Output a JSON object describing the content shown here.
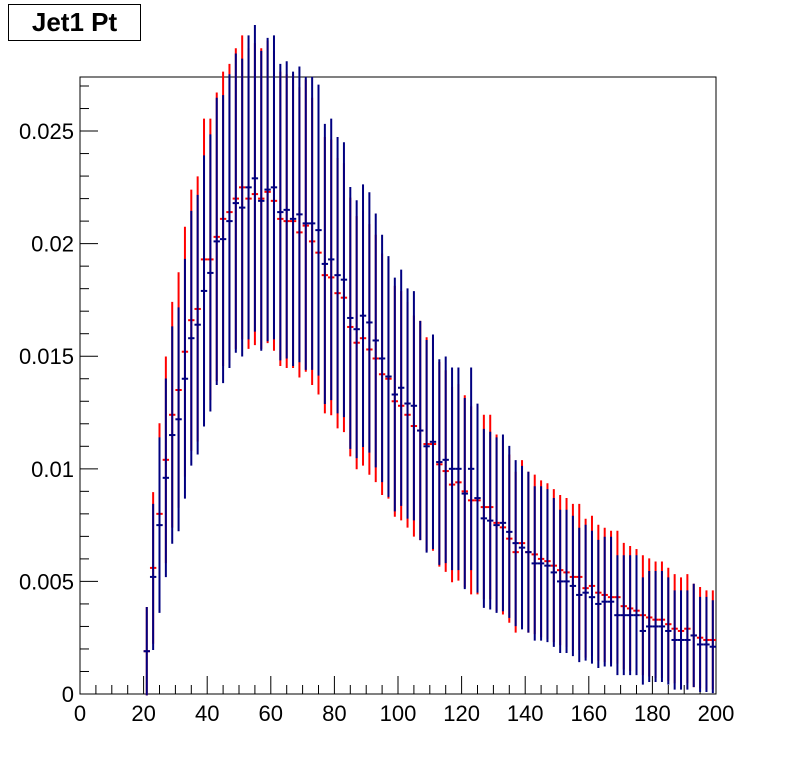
{
  "chart_data": {
    "type": "scatter",
    "title": "Jet1 Pt",
    "xlabel": "",
    "ylabel": "",
    "xlim": [
      0,
      200
    ],
    "ylim": [
      0,
      0.0274
    ],
    "x_ticks": [
      0,
      20,
      40,
      60,
      80,
      100,
      120,
      140,
      160,
      180,
      200
    ],
    "x_tick_labels": [
      "0",
      "20",
      "40",
      "60",
      "80",
      "100",
      "120",
      "140",
      "160",
      "180",
      "200"
    ],
    "y_ticks": [
      0,
      0.005,
      0.01,
      0.015,
      0.02,
      0.025
    ],
    "y_tick_labels": [
      "0",
      "0.005",
      "0.01",
      "0.015",
      "0.02",
      "0.025"
    ],
    "bin_width": 2,
    "grid": false,
    "legend": "none",
    "series": [
      {
        "color": "#ff0000",
        "x": [
          21,
          23,
          25,
          27,
          29,
          31,
          33,
          35,
          37,
          39,
          41,
          43,
          45,
          47,
          49,
          51,
          53,
          55,
          57,
          59,
          61,
          63,
          65,
          67,
          69,
          71,
          73,
          75,
          77,
          79,
          81,
          83,
          85,
          87,
          89,
          91,
          93,
          95,
          97,
          99,
          101,
          103,
          105,
          107,
          109,
          111,
          113,
          115,
          117,
          119,
          121,
          123,
          125,
          127,
          129,
          131,
          133,
          135,
          137,
          139,
          141,
          143,
          145,
          147,
          149,
          151,
          153,
          155,
          157,
          159,
          161,
          163,
          165,
          167,
          169,
          171,
          173,
          175,
          177,
          179,
          181,
          183,
          185,
          187,
          189,
          191,
          193,
          195,
          197,
          199
        ],
        "y": [
          0.0019,
          0.0056,
          0.008,
          0.0104,
          0.0124,
          0.0135,
          0.0152,
          0.0166,
          0.0171,
          0.0193,
          0.0193,
          0.0203,
          0.0211,
          0.0214,
          0.022,
          0.0225,
          0.022,
          0.0222,
          0.022,
          0.0223,
          0.0219,
          0.0211,
          0.021,
          0.021,
          0.0205,
          0.0208,
          0.0201,
          0.0196,
          0.0186,
          0.0185,
          0.0178,
          0.0176,
          0.0163,
          0.0156,
          0.0158,
          0.0153,
          0.0149,
          0.0142,
          0.014,
          0.013,
          0.0128,
          0.0124,
          0.0119,
          0.0117,
          0.0111,
          0.0111,
          0.0102,
          0.0099,
          0.0093,
          0.0094,
          0.009,
          0.0086,
          0.0086,
          0.0083,
          0.0083,
          0.0076,
          0.0074,
          0.0069,
          0.0063,
          0.0067,
          0.0063,
          0.0062,
          0.006,
          0.0059,
          0.0057,
          0.0055,
          0.0054,
          0.0052,
          0.0052,
          0.0047,
          0.0048,
          0.0045,
          0.0044,
          0.0043,
          0.0043,
          0.0039,
          0.0038,
          0.0037,
          0.0035,
          0.0034,
          0.0033,
          0.0033,
          0.0031,
          0.0029,
          0.0028,
          0.0029,
          0.0026,
          0.0025,
          0.0024,
          0.0024
        ]
      },
      {
        "color": "#000080",
        "x": [
          21,
          23,
          25,
          27,
          29,
          31,
          33,
          35,
          37,
          39,
          41,
          43,
          45,
          47,
          49,
          51,
          53,
          55,
          57,
          59,
          61,
          63,
          65,
          67,
          69,
          71,
          73,
          75,
          77,
          79,
          81,
          83,
          85,
          87,
          89,
          91,
          93,
          95,
          97,
          99,
          101,
          103,
          105,
          107,
          109,
          111,
          113,
          115,
          117,
          119,
          121,
          123,
          125,
          127,
          129,
          131,
          133,
          135,
          137,
          139,
          141,
          143,
          145,
          147,
          149,
          151,
          153,
          155,
          157,
          159,
          161,
          163,
          165,
          167,
          169,
          171,
          173,
          175,
          177,
          179,
          181,
          183,
          185,
          187,
          189,
          191,
          193,
          195,
          197,
          199
        ],
        "y": [
          0.0019,
          0.0052,
          0.0075,
          0.0096,
          0.0115,
          0.0122,
          0.014,
          0.0158,
          0.0164,
          0.0179,
          0.0187,
          0.0201,
          0.0202,
          0.021,
          0.0218,
          0.0216,
          0.0225,
          0.0229,
          0.0219,
          0.0224,
          0.0225,
          0.0214,
          0.0215,
          0.0211,
          0.0213,
          0.0209,
          0.0209,
          0.0206,
          0.0191,
          0.0193,
          0.0186,
          0.0184,
          0.0167,
          0.0162,
          0.0168,
          0.0165,
          0.0157,
          0.0149,
          0.0141,
          0.0133,
          0.0136,
          0.0129,
          0.0128,
          0.0117,
          0.011,
          0.0112,
          0.0103,
          0.0104,
          0.01,
          0.01,
          0.0089,
          0.01,
          0.0087,
          0.0078,
          0.0077,
          0.0075,
          0.0076,
          0.0072,
          0.0067,
          0.0065,
          0.0063,
          0.0058,
          0.0058,
          0.0057,
          0.0054,
          0.005,
          0.005,
          0.0048,
          0.0044,
          0.0045,
          0.0043,
          0.004,
          0.0041,
          0.0041,
          0.0035,
          0.0035,
          0.0035,
          0.0035,
          0.0028,
          0.003,
          0.003,
          0.003,
          0.0028,
          0.0024,
          0.0024,
          0.0024,
          0.0026,
          0.0022,
          0.0022,
          0.0021
        ]
      }
    ]
  }
}
